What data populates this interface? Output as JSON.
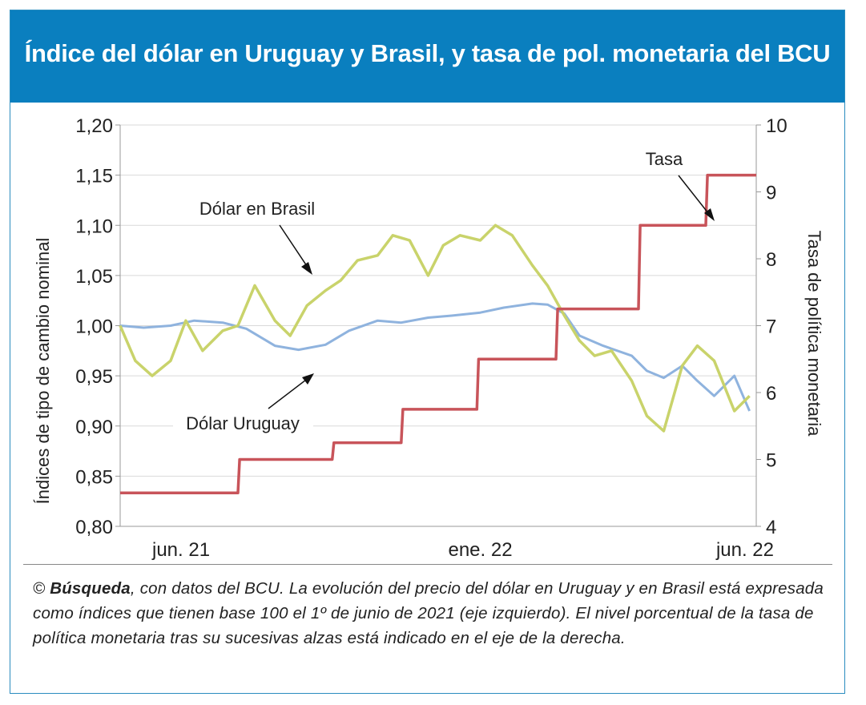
{
  "header": {
    "title": "Índice del dólar en Uruguay y Brasil, y tasa de pol. monetaria del BCU"
  },
  "caption": {
    "source": "Búsqueda",
    "prefix": "© ",
    "text": ", con datos del BCU. La evolución del precio del dólar en Uruguay y en Brasil está expresada como índices que tienen base 100 el 1º de junio de 2021 (eje izquierdo). El nivel porcentual de la tasa de política monetaria tras su sucesivas alzas está indicado en el eje de la derecha."
  },
  "colors": {
    "header_bg": "#0a7fbf",
    "uruguay": "#8fb3de",
    "brasil": "#c9d36b",
    "tasa": "#c8545a",
    "grid": "#d9d9d9"
  },
  "chart_data": {
    "type": "line",
    "ylabel_left": "Índices de tipo de cambio nominal",
    "ylabel_right": "Tasa de política monetaria",
    "ylim_left": [
      0.8,
      1.2
    ],
    "ylim_right": [
      4,
      10
    ],
    "yticks_left": [
      "0,80",
      "0,85",
      "0,90",
      "0,95",
      "1,00",
      "1,05",
      "1,10",
      "1,15",
      "1,20"
    ],
    "yticks_right": [
      "4",
      "5",
      "6",
      "7",
      "8",
      "9",
      "10"
    ],
    "xticks": [
      "jun. 21",
      "ene. 22",
      "jun. 22"
    ],
    "grid": "horizontal",
    "annotations": [
      "Dólar en Brasil",
      "Dólar Uruguay",
      "Tasa"
    ],
    "series": [
      {
        "name": "Dólar Uruguay",
        "axis": "left",
        "x": [
          "2021-06-01",
          "2021-06-15",
          "2021-07-01",
          "2021-07-15",
          "2021-08-01",
          "2021-08-15",
          "2021-09-01",
          "2021-09-15",
          "2021-10-01",
          "2021-10-15",
          "2021-11-01",
          "2021-11-15",
          "2021-12-01",
          "2021-12-15",
          "2022-01-01",
          "2022-01-15",
          "2022-02-01",
          "2022-02-10",
          "2022-02-20",
          "2022-03-01",
          "2022-03-15",
          "2022-04-01",
          "2022-04-10",
          "2022-04-20",
          "2022-05-01",
          "2022-05-10",
          "2022-05-20",
          "2022-06-01",
          "2022-06-10"
        ],
        "y": [
          1.0,
          0.998,
          1.0,
          1.005,
          1.003,
          0.997,
          0.98,
          0.976,
          0.981,
          0.995,
          1.005,
          1.003,
          1.008,
          1.01,
          1.013,
          1.018,
          1.022,
          1.021,
          1.012,
          0.99,
          0.98,
          0.97,
          0.955,
          0.948,
          0.96,
          0.945,
          0.93,
          0.95,
          0.915
        ]
      },
      {
        "name": "Dólar en Brasil",
        "axis": "left",
        "x": [
          "2021-06-01",
          "2021-06-10",
          "2021-06-20",
          "2021-07-01",
          "2021-07-10",
          "2021-07-20",
          "2021-08-01",
          "2021-08-10",
          "2021-08-20",
          "2021-09-01",
          "2021-09-10",
          "2021-09-20",
          "2021-10-01",
          "2021-10-10",
          "2021-10-20",
          "2021-11-01",
          "2021-11-10",
          "2021-11-20",
          "2021-12-01",
          "2021-12-10",
          "2021-12-20",
          "2022-01-01",
          "2022-01-10",
          "2022-01-20",
          "2022-02-01",
          "2022-02-10",
          "2022-02-20",
          "2022-03-01",
          "2022-03-10",
          "2022-03-20",
          "2022-04-01",
          "2022-04-10",
          "2022-04-20",
          "2022-05-01",
          "2022-05-10",
          "2022-05-20",
          "2022-06-01",
          "2022-06-10"
        ],
        "y": [
          1.0,
          0.965,
          0.95,
          0.965,
          1.005,
          0.975,
          0.995,
          1.0,
          1.04,
          1.005,
          0.99,
          1.02,
          1.035,
          1.045,
          1.065,
          1.07,
          1.09,
          1.085,
          1.05,
          1.08,
          1.09,
          1.085,
          1.1,
          1.09,
          1.06,
          1.04,
          1.01,
          0.985,
          0.97,
          0.975,
          0.945,
          0.91,
          0.895,
          0.96,
          0.98,
          0.965,
          0.915,
          0.93
        ]
      },
      {
        "name": "Tasa",
        "axis": "right",
        "x": [
          "2021-06-01",
          "2021-08-10",
          "2021-08-11",
          "2021-10-05",
          "2021-10-06",
          "2021-11-15",
          "2021-11-16",
          "2021-12-30",
          "2021-12-31",
          "2022-02-15",
          "2022-02-16",
          "2022-04-05",
          "2022-04-06",
          "2022-05-15",
          "2022-05-16",
          "2022-06-14"
        ],
        "y": [
          4.5,
          4.5,
          5.0,
          5.0,
          5.25,
          5.25,
          5.75,
          5.75,
          6.5,
          6.5,
          7.25,
          7.25,
          8.5,
          8.5,
          9.25,
          9.25
        ]
      }
    ]
  }
}
